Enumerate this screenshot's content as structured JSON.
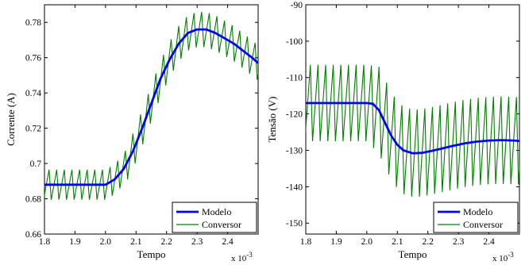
{
  "chart_data": [
    {
      "type": "line",
      "xlabel": "Tempo",
      "ylabel": "Corrente (A)",
      "x_multiplier": "x 10",
      "x_multiplier_exp": "-3",
      "xlim": [
        1.8,
        2.5
      ],
      "ylim": [
        0.66,
        0.79
      ],
      "xticks": [
        1.8,
        1.9,
        2.0,
        2.1,
        2.2,
        2.3,
        2.4
      ],
      "yticks": [
        0.66,
        0.68,
        0.7,
        0.72,
        0.74,
        0.76,
        0.78
      ],
      "ytick_labels": [
        "0.66",
        "0.68",
        "0.7",
        "0.72",
        "0.74",
        "0.76",
        "0.78"
      ],
      "grid": false,
      "legend_position": "bottom-right",
      "series": [
        {
          "name": "Modelo",
          "color": "#0000ff",
          "x": [
            1.8,
            1.85,
            1.9,
            1.95,
            2.0,
            2.03,
            2.06,
            2.09,
            2.12,
            2.15,
            2.18,
            2.21,
            2.24,
            2.27,
            2.3,
            2.33,
            2.36,
            2.39,
            2.42,
            2.45,
            2.48,
            2.5
          ],
          "y": [
            0.688,
            0.688,
            0.688,
            0.688,
            0.688,
            0.691,
            0.697,
            0.707,
            0.72,
            0.734,
            0.748,
            0.759,
            0.768,
            0.774,
            0.776,
            0.776,
            0.774,
            0.771,
            0.768,
            0.764,
            0.76,
            0.757
          ]
        },
        {
          "name": "Conversor",
          "color": "#007f00",
          "sawtooth": {
            "period": 0.025,
            "amplitude_low": 0.017,
            "amplitude_high": 0.02,
            "transition": [
              2.05,
              2.25
            ]
          }
        }
      ]
    },
    {
      "type": "line",
      "xlabel": "Tempo",
      "ylabel": "Tensão (V)",
      "x_multiplier": "x 10",
      "x_multiplier_exp": "-3",
      "xlim": [
        1.8,
        2.5
      ],
      "ylim": [
        -153,
        -90
      ],
      "xticks": [
        1.8,
        1.9,
        2.0,
        2.1,
        2.2,
        2.3,
        2.4
      ],
      "yticks": [
        -150,
        -140,
        -130,
        -120,
        -110,
        -100,
        -90
      ],
      "ytick_labels": [
        "-150",
        "-140",
        "-130",
        "-120",
        "-110",
        "-100",
        "-90"
      ],
      "grid": false,
      "legend_position": "bottom-right",
      "series": [
        {
          "name": "Modelo",
          "color": "#0000ff",
          "x": [
            1.8,
            1.9,
            2.0,
            2.02,
            2.04,
            2.06,
            2.08,
            2.1,
            2.12,
            2.15,
            2.18,
            2.21,
            2.24,
            2.28,
            2.32,
            2.36,
            2.4,
            2.44,
            2.48,
            2.5
          ],
          "y": [
            -117,
            -117,
            -117,
            -117.2,
            -119,
            -122.5,
            -126,
            -128.5,
            -130,
            -130.8,
            -130.7,
            -130.2,
            -129.6,
            -128.8,
            -128.1,
            -127.6,
            -127.3,
            -127.2,
            -127.3,
            -127.4
          ]
        },
        {
          "name": "Conversor",
          "color": "#007f00",
          "sawtooth": {
            "period": 0.025,
            "amplitude_low": 21,
            "amplitude_high": 24,
            "transition": [
              2.02,
              2.1
            ]
          }
        }
      ]
    }
  ]
}
